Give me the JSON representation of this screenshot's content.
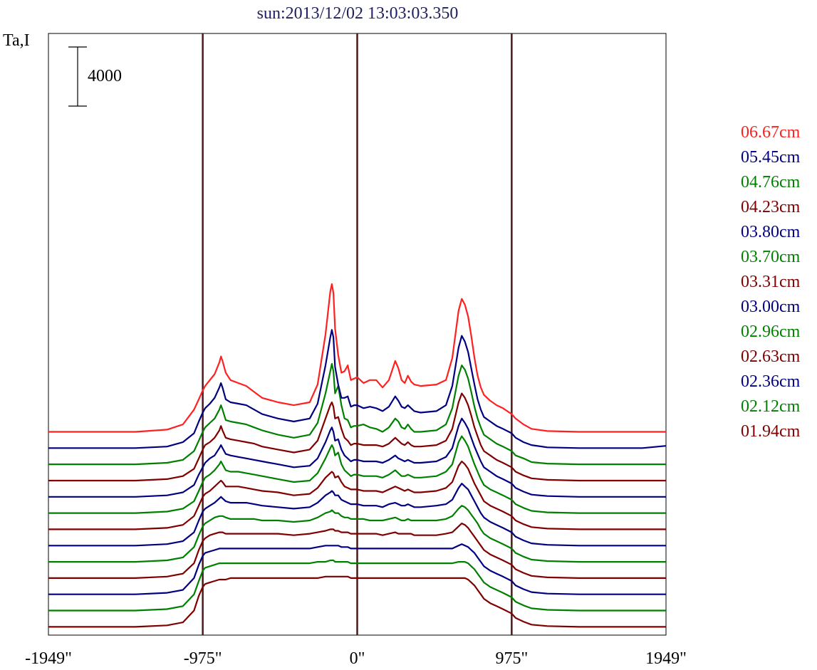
{
  "chart_data": {
    "type": "line",
    "title": "sun:2013/12/02 13:03:03.350",
    "ylabel": "Ta,I",
    "scale_bar_label": "4000",
    "scale_bar_value": 4000,
    "xlim": [
      -1949,
      1949
    ],
    "x_ticks": [
      {
        "value": -1949,
        "label": "-1949\""
      },
      {
        "value": -975,
        "label": "-975\""
      },
      {
        "value": 0,
        "label": "0\""
      },
      {
        "value": 975,
        "label": "975\""
      },
      {
        "value": 1949,
        "label": "1949\""
      }
    ],
    "vertical_lines": [
      -975,
      0,
      975
    ],
    "line_color": "#4a1a1a",
    "x": [
      -1949,
      -1600,
      -1400,
      -1200,
      -1100,
      -1030,
      -1000,
      -975,
      -960,
      -930,
      -900,
      -870,
      -860,
      -850,
      -830,
      -800,
      -750,
      -700,
      -650,
      -600,
      -500,
      -400,
      -300,
      -250,
      -200,
      -170,
      -160,
      -150,
      -140,
      -120,
      -100,
      -80,
      -60,
      -40,
      -20,
      0,
      40,
      80,
      120,
      160,
      200,
      240,
      260,
      280,
      300,
      320,
      340,
      360,
      400,
      500,
      560,
      600,
      640,
      660,
      680,
      700,
      720,
      740,
      760,
      780,
      800,
      840,
      880,
      920,
      975,
      1000,
      1050,
      1100,
      1200,
      1400,
      1600,
      1800,
      1949
    ],
    "series": [
      {
        "name": "06.67cm",
        "color": "#ff2020",
        "offset": 12700,
        "values": [
          0,
          0,
          0,
          150,
          500,
          1500,
          2200,
          2800,
          3100,
          3500,
          3900,
          4700,
          5100,
          4800,
          4000,
          3500,
          3300,
          3100,
          2700,
          2300,
          2000,
          1800,
          2000,
          3200,
          6600,
          9500,
          10000,
          9400,
          7000,
          5200,
          4000,
          4100,
          4500,
          3500,
          3600,
          3700,
          3300,
          3500,
          3500,
          3000,
          3500,
          4800,
          4300,
          3500,
          3300,
          3800,
          3400,
          3200,
          3100,
          3200,
          3500,
          5000,
          8200,
          9000,
          8600,
          7800,
          6500,
          5000,
          3800,
          3000,
          2500,
          2100,
          1800,
          1600,
          1200,
          900,
          500,
          200,
          50,
          0,
          0,
          0,
          0
        ]
      },
      {
        "name": "05.45cm",
        "color": "#000080",
        "offset": 11600,
        "values": [
          0,
          0,
          0,
          100,
          400,
          1000,
          1800,
          2400,
          2700,
          3000,
          3400,
          4100,
          4400,
          4100,
          3300,
          3100,
          3000,
          2900,
          2600,
          2300,
          2000,
          1800,
          2000,
          3000,
          5600,
          7500,
          8000,
          7500,
          5500,
          4300,
          3400,
          3400,
          3500,
          2800,
          2900,
          2900,
          2700,
          2800,
          2700,
          2500,
          2800,
          3500,
          3200,
          2800,
          2700,
          2900,
          2700,
          2500,
          2400,
          2500,
          2900,
          4200,
          6800,
          7600,
          7200,
          6500,
          5400,
          4300,
          3300,
          2600,
          2100,
          1800,
          1500,
          1300,
          1000,
          700,
          400,
          200,
          50,
          0,
          0,
          0,
          150
        ]
      },
      {
        "name": "04.76cm",
        "color": "#008000",
        "offset": 10500,
        "values": [
          0,
          0,
          0,
          100,
          300,
          900,
          1600,
          2200,
          2500,
          2800,
          3100,
          3700,
          4000,
          3700,
          3000,
          2900,
          2800,
          2700,
          2500,
          2300,
          2000,
          1800,
          2000,
          2800,
          4800,
          6300,
          6800,
          6300,
          4800,
          5300,
          4000,
          3100,
          3000,
          2500,
          2600,
          2600,
          2700,
          2500,
          2400,
          2200,
          2500,
          3100,
          2900,
          2500,
          2400,
          2700,
          2400,
          2200,
          2200,
          2300,
          2700,
          3800,
          6000,
          6700,
          6400,
          5800,
          4900,
          3900,
          3100,
          2500,
          2000,
          1700,
          1400,
          1200,
          900,
          600,
          400,
          150,
          50,
          0,
          0,
          0,
          0
        ]
      },
      {
        "name": "04.23cm",
        "color": "#800000",
        "offset": 9400,
        "values": [
          0,
          0,
          0,
          100,
          300,
          800,
          1500,
          2100,
          2400,
          2600,
          2900,
          3400,
          3700,
          3400,
          2900,
          2800,
          2700,
          2600,
          2500,
          2300,
          2100,
          1900,
          2100,
          2700,
          4200,
          5100,
          5300,
          5000,
          4200,
          4300,
          3500,
          2900,
          2700,
          2400,
          2500,
          2500,
          2400,
          2400,
          2400,
          2300,
          2500,
          2900,
          2700,
          2500,
          2400,
          2600,
          2400,
          2300,
          2300,
          2400,
          2700,
          3500,
          5300,
          5900,
          5600,
          5100,
          4400,
          3600,
          3000,
          2400,
          2000,
          1700,
          1400,
          1200,
          900,
          600,
          350,
          150,
          50,
          0,
          0,
          0,
          0
        ]
      },
      {
        "name": "03.80cm",
        "color": "#000080",
        "offset": 8300,
        "values": [
          0,
          0,
          0,
          100,
          300,
          800,
          1500,
          2000,
          2300,
          2600,
          2800,
          3300,
          3500,
          3300,
          2900,
          2800,
          2700,
          2600,
          2500,
          2400,
          2200,
          2000,
          2100,
          2600,
          3700,
          4500,
          4700,
          4400,
          3800,
          3900,
          3200,
          2800,
          2600,
          2400,
          2500,
          2500,
          2400,
          2400,
          2400,
          2300,
          2500,
          2800,
          2600,
          2500,
          2400,
          2500,
          2400,
          2300,
          2300,
          2400,
          2700,
          3300,
          4800,
          5300,
          5000,
          4600,
          4000,
          3400,
          2900,
          2400,
          2000,
          1700,
          1400,
          1200,
          900,
          600,
          350,
          150,
          50,
          0,
          0,
          0,
          0
        ]
      },
      {
        "name": "03.70cm",
        "color": "#008000",
        "offset": 7200,
        "values": [
          0,
          0,
          0,
          100,
          300,
          800,
          1500,
          2100,
          2400,
          2600,
          2900,
          3300,
          3500,
          3300,
          2900,
          2800,
          2800,
          2700,
          2600,
          2500,
          2300,
          2100,
          2200,
          2700,
          3700,
          4400,
          4600,
          4400,
          3900,
          4100,
          3300,
          2900,
          2700,
          2500,
          2600,
          2600,
          2500,
          2500,
          2500,
          2400,
          2600,
          2900,
          2700,
          2500,
          2500,
          2600,
          2500,
          2400,
          2400,
          2500,
          2800,
          3300,
          4800,
          5200,
          4900,
          4500,
          3900,
          3300,
          2800,
          2300,
          1900,
          1600,
          1400,
          1200,
          900,
          600,
          350,
          150,
          50,
          0,
          0,
          0,
          0
        ]
      },
      {
        "name": "03.31cm",
        "color": "#800000",
        "offset": 6100,
        "values": [
          0,
          0,
          0,
          100,
          300,
          900,
          1600,
          2200,
          2400,
          2600,
          2900,
          3200,
          3300,
          3200,
          2900,
          2900,
          2900,
          2800,
          2700,
          2600,
          2500,
          2300,
          2400,
          2800,
          3500,
          3800,
          3900,
          3800,
          3500,
          3600,
          3200,
          2900,
          2800,
          2700,
          2700,
          2700,
          2600,
          2600,
          2600,
          2500,
          2700,
          2900,
          2800,
          2700,
          2600,
          2700,
          2600,
          2500,
          2500,
          2600,
          2800,
          3200,
          4300,
          4600,
          4400,
          4100,
          3600,
          3100,
          2700,
          2300,
          1900,
          1600,
          1400,
          1200,
          900,
          600,
          350,
          150,
          50,
          0,
          0,
          0,
          0
        ]
      },
      {
        "name": "03.00cm",
        "color": "#000080",
        "offset": 5000,
        "values": [
          0,
          0,
          0,
          100,
          300,
          900,
          1700,
          2300,
          2500,
          2700,
          2900,
          3200,
          3300,
          3200,
          3000,
          2900,
          2900,
          2900,
          2800,
          2700,
          2600,
          2500,
          2600,
          2900,
          3400,
          3600,
          3700,
          3600,
          3400,
          3400,
          3100,
          3000,
          2900,
          2800,
          2800,
          2800,
          2700,
          2700,
          2700,
          2600,
          2800,
          2900,
          2800,
          2700,
          2700,
          2800,
          2700,
          2600,
          2600,
          2700,
          2800,
          3100,
          3900,
          4200,
          4000,
          3800,
          3400,
          3000,
          2600,
          2200,
          1900,
          1600,
          1400,
          1200,
          900,
          600,
          350,
          150,
          50,
          0,
          0,
          0,
          0
        ]
      },
      {
        "name": "02.96cm",
        "color": "#008000",
        "offset": 3900,
        "values": [
          0,
          0,
          0,
          100,
          300,
          1000,
          1800,
          2400,
          2600,
          2800,
          3000,
          3100,
          3100,
          3100,
          3000,
          2900,
          2900,
          2900,
          2900,
          2800,
          2800,
          2700,
          2800,
          3000,
          3300,
          3400,
          3500,
          3400,
          3300,
          3300,
          3100,
          3000,
          3000,
          2900,
          2900,
          2900,
          2900,
          2800,
          2800,
          2800,
          2900,
          3000,
          2900,
          2800,
          2800,
          2900,
          2800,
          2800,
          2800,
          2800,
          2900,
          3100,
          3600,
          3800,
          3700,
          3500,
          3200,
          2900,
          2600,
          2200,
          1900,
          1600,
          1400,
          1200,
          900,
          600,
          350,
          150,
          50,
          0,
          0,
          0,
          0
        ]
      },
      {
        "name": "02.63cm",
        "color": "#800000",
        "offset": 2800,
        "values": [
          0,
          0,
          0,
          100,
          300,
          1000,
          1900,
          2500,
          2700,
          2900,
          3000,
          3100,
          3100,
          3100,
          3000,
          3000,
          3000,
          3000,
          3000,
          3000,
          3000,
          2900,
          3000,
          3100,
          3200,
          3300,
          3300,
          3300,
          3200,
          3200,
          3100,
          3100,
          3100,
          3000,
          3000,
          3000,
          3000,
          3000,
          3000,
          2900,
          3000,
          3100,
          3000,
          3000,
          3000,
          3000,
          3000,
          2900,
          2900,
          2900,
          3000,
          3100,
          3500,
          3700,
          3600,
          3400,
          3100,
          2800,
          2500,
          2200,
          1900,
          1600,
          1400,
          1200,
          900,
          600,
          350,
          150,
          50,
          0,
          0,
          0,
          0
        ]
      },
      {
        "name": "02.36cm",
        "color": "#000080",
        "offset": 1700,
        "values": [
          0,
          0,
          0,
          100,
          300,
          1100,
          2000,
          2600,
          2800,
          2900,
          3000,
          3100,
          3100,
          3100,
          3100,
          3100,
          3100,
          3100,
          3100,
          3100,
          3100,
          3100,
          3100,
          3200,
          3300,
          3300,
          3300,
          3300,
          3300,
          3300,
          3200,
          3200,
          3200,
          3100,
          3100,
          3100,
          3100,
          3100,
          3100,
          3100,
          3100,
          3100,
          3100,
          3100,
          3100,
          3100,
          3100,
          3100,
          3100,
          3100,
          3100,
          3100,
          3300,
          3400,
          3300,
          3200,
          3000,
          2800,
          2500,
          2200,
          1900,
          1600,
          1400,
          1200,
          900,
          600,
          350,
          150,
          50,
          0,
          0,
          0,
          0
        ]
      },
      {
        "name": "02.12cm",
        "color": "#008000",
        "offset": 600,
        "values": [
          0,
          0,
          0,
          100,
          300,
          1100,
          2000,
          2700,
          2900,
          3000,
          3100,
          3200,
          3200,
          3200,
          3200,
          3200,
          3200,
          3200,
          3200,
          3200,
          3200,
          3200,
          3200,
          3300,
          3300,
          3400,
          3400,
          3400,
          3300,
          3300,
          3300,
          3300,
          3300,
          3200,
          3200,
          3200,
          3200,
          3200,
          3200,
          3200,
          3200,
          3200,
          3200,
          3200,
          3200,
          3200,
          3200,
          3200,
          3200,
          3200,
          3200,
          3200,
          3300,
          3300,
          3300,
          3200,
          3000,
          2800,
          2500,
          2200,
          1900,
          1600,
          1400,
          1200,
          900,
          600,
          350,
          150,
          50,
          0,
          0,
          0,
          0
        ]
      },
      {
        "name": "01.94cm",
        "color": "#800000",
        "offset": -500,
        "values": [
          0,
          0,
          0,
          100,
          300,
          1100,
          2100,
          2700,
          2900,
          3000,
          3100,
          3200,
          3200,
          3200,
          3200,
          3300,
          3300,
          3300,
          3300,
          3300,
          3300,
          3300,
          3300,
          3300,
          3400,
          3400,
          3400,
          3400,
          3400,
          3400,
          3400,
          3400,
          3400,
          3300,
          3300,
          3300,
          3300,
          3300,
          3300,
          3300,
          3300,
          3300,
          3300,
          3300,
          3300,
          3300,
          3300,
          3300,
          3300,
          3300,
          3300,
          3300,
          3300,
          3300,
          3300,
          3200,
          3000,
          2800,
          2500,
          2200,
          1900,
          1600,
          1400,
          1200,
          900,
          600,
          350,
          150,
          50,
          0,
          0,
          0,
          0
        ]
      }
    ]
  }
}
